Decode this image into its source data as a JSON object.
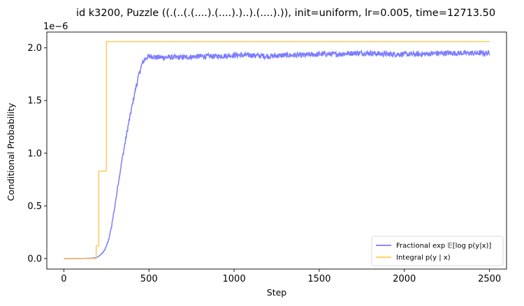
{
  "chart_data": {
    "type": "line",
    "title": "id k3200, Puzzle ((.(..(.(....).(....).)..).(....).)), init=uniform, lr=0.005, time=12713.50",
    "xlabel": "Step",
    "ylabel": "Conditional Probability",
    "offset_text": "1e−6",
    "xlim": [
      -100,
      2600
    ],
    "ylim": [
      -0.1,
      2.15
    ],
    "xticks": [
      0,
      500,
      1000,
      1500,
      2000,
      2500
    ],
    "xtick_labels": [
      "0",
      "500",
      "1000",
      "1500",
      "2000",
      "2500"
    ],
    "yticks": [
      0.0,
      0.5,
      1.0,
      1.5,
      2.0
    ],
    "ytick_labels": [
      "0.0",
      "0.5",
      "1.0",
      "1.5",
      "2.0"
    ],
    "grid": false,
    "legend_position": "lower-right",
    "series": [
      {
        "name": "Fractional exp 𝔼[log p(y|x)]",
        "color": "#6666ff",
        "noise": 0.025,
        "x": [
          0,
          100,
          180,
          200,
          220,
          240,
          260,
          280,
          300,
          320,
          340,
          360,
          380,
          400,
          420,
          440,
          460,
          480,
          500,
          520,
          540,
          600,
          700,
          800,
          900,
          1000,
          1100,
          1200,
          1300,
          1400,
          1500,
          1600,
          1700,
          1800,
          1900,
          2000,
          2100,
          2200,
          2300,
          2400,
          2500
        ],
        "y": [
          0.0,
          0.0,
          0.005,
          0.015,
          0.04,
          0.08,
          0.16,
          0.3,
          0.5,
          0.72,
          0.92,
          1.1,
          1.28,
          1.44,
          1.6,
          1.74,
          1.85,
          1.9,
          1.92,
          1.92,
          1.91,
          1.91,
          1.91,
          1.92,
          1.92,
          1.93,
          1.93,
          1.92,
          1.93,
          1.93,
          1.94,
          1.94,
          1.95,
          1.95,
          1.94,
          1.94,
          1.94,
          1.95,
          1.95,
          1.95,
          1.95
        ]
      },
      {
        "name": "Integral p(y | x)",
        "color": "#ffbf40",
        "noise": 0,
        "x": [
          0,
          190,
          190,
          205,
          205,
          250,
          250,
          2500
        ],
        "y": [
          0.0,
          0.0,
          0.12,
          0.12,
          0.83,
          0.83,
          2.06,
          2.06
        ]
      }
    ]
  }
}
